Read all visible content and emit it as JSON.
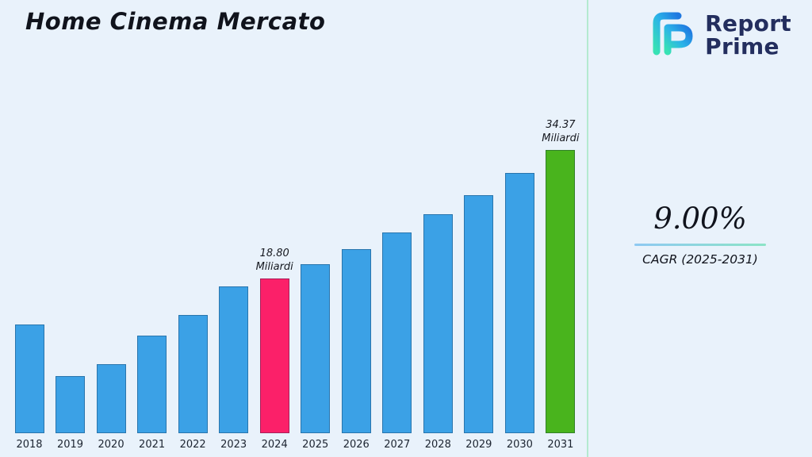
{
  "title": "Home Cinema Mercato",
  "logo": {
    "icon": "report-prime-logo",
    "line1": "Report",
    "line2": "Prime",
    "text_color": "#232e5e"
  },
  "stats": {
    "cagr_value": "9.00%",
    "cagr_label": "CAGR (2025-2031)"
  },
  "chart_data": {
    "type": "bar",
    "title": "Home Cinema Mercato",
    "xlabel": "",
    "ylabel": "",
    "unit": "Miliardi",
    "categories": [
      "2018",
      "2019",
      "2020",
      "2021",
      "2022",
      "2023",
      "2024",
      "2025",
      "2026",
      "2027",
      "2028",
      "2029",
      "2030",
      "2031"
    ],
    "values": [
      13.2,
      6.9,
      8.4,
      11.8,
      14.3,
      17.8,
      18.8,
      20.49,
      22.34,
      24.35,
      26.54,
      28.93,
      31.53,
      34.37
    ],
    "ylim": [
      0,
      36
    ],
    "grid": false,
    "legend": false,
    "bar_color": "#3ba1e6",
    "highlight_colors": {
      "2024": "#fb2069",
      "2031": "#49b41d"
    },
    "annotations": [
      {
        "category": "2024",
        "value_label": "18.80",
        "unit_label": "Miliardi"
      },
      {
        "category": "2031",
        "value_label": "34.37",
        "unit_label": "Miliardi"
      }
    ]
  }
}
